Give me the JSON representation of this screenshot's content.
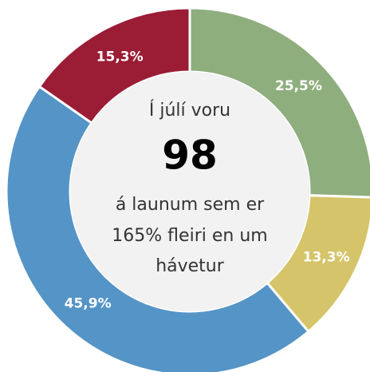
{
  "chart_data": {
    "type": "donut",
    "values": [
      25.5,
      13.3,
      45.9,
      15.3
    ],
    "value_labels": [
      "25,5%",
      "13,3%",
      "45,9%",
      "15,3%"
    ],
    "colors": [
      "#8fae7e",
      "#d6c46a",
      "#5594c6",
      "#9b1c35"
    ],
    "center_text_top": "Í júlí voru",
    "center_value": 98,
    "center_text_bottom": [
      "á launum sem er",
      "165% fleiri en um",
      "hávetur"
    ]
  }
}
